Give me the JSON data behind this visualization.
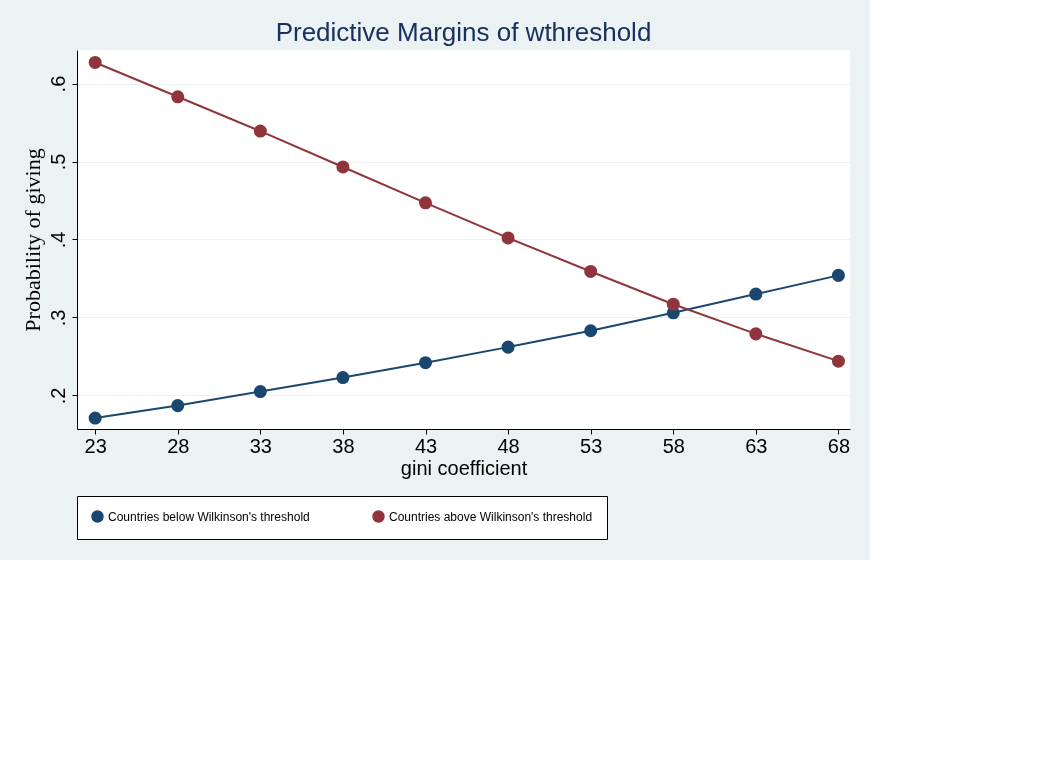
{
  "chart_data": {
    "type": "line",
    "title": "Predictive Margins of wthreshold",
    "xlabel": "gini coefficient",
    "ylabel": "Probability of giving",
    "x": [
      23,
      28,
      33,
      38,
      43,
      48,
      53,
      58,
      63,
      68
    ],
    "series": [
      {
        "name": "Countries below Wilkinson's threshold",
        "color": "#1a476f",
        "values": [
          0.171,
          0.187,
          0.205,
          0.223,
          0.242,
          0.262,
          0.283,
          0.306,
          0.33,
          0.354
        ]
      },
      {
        "name": "Countries above Wilkinson's threshold",
        "color": "#90353b",
        "values": [
          0.627,
          0.583,
          0.539,
          0.493,
          0.447,
          0.402,
          0.359,
          0.317,
          0.279,
          0.244
        ]
      }
    ],
    "xlim": [
      21.9,
      68.7
    ],
    "ylim": [
      0.157,
      0.643
    ],
    "xticks": [
      23,
      28,
      33,
      38,
      43,
      48,
      53,
      58,
      63,
      68
    ],
    "yticks": [
      {
        "value": 0.2,
        "label": ".2"
      },
      {
        "value": 0.3,
        "label": ".3"
      },
      {
        "value": 0.4,
        "label": ".4"
      },
      {
        "value": 0.5,
        "label": ".5"
      },
      {
        "value": 0.6,
        "label": ".6"
      }
    ],
    "grid": "y",
    "legend": "bottom",
    "marker": "circle",
    "line_style": "solid"
  }
}
